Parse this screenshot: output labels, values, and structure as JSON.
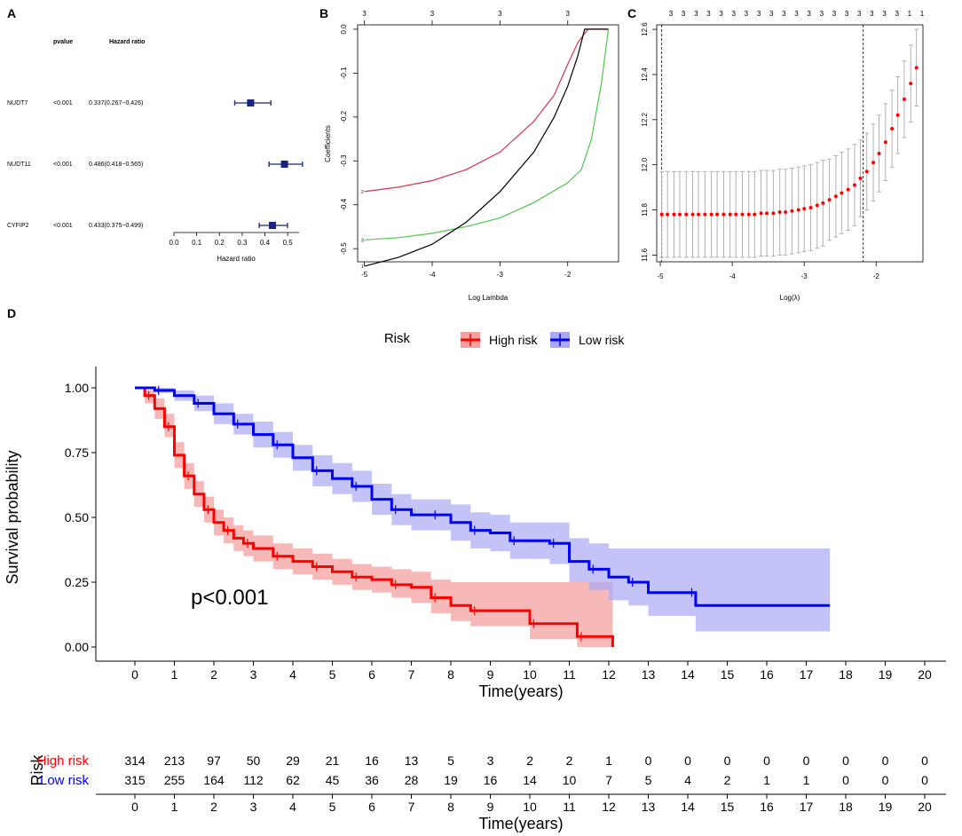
{
  "panel_labels": {
    "a": "A",
    "b": "B",
    "c": "C",
    "d": "D"
  },
  "colors": {
    "high": "#ff0000",
    "low": "#0000ff",
    "high_band": "#f4a0a0",
    "low_band": "#a9a9f5",
    "forest": "#1a237e",
    "red_line": "#d6334b",
    "green_line": "#4cc84c",
    "black_line": "#000000"
  },
  "chart_data": [
    {
      "panel": "A",
      "type": "forest",
      "col_headers": {
        "pvalue": "pvalue",
        "hr": "Hazard ratio"
      },
      "rows": [
        {
          "gene": "NUDT7",
          "pvalue": "<0.001",
          "hr_text": "0.337(0.267−0.426)",
          "hr": 0.337,
          "lo": 0.267,
          "hi": 0.426
        },
        {
          "gene": "NUDT11",
          "pvalue": "<0.001",
          "hr_text": "0.486(0.418−0.565)",
          "hr": 0.486,
          "lo": 0.418,
          "hi": 0.565
        },
        {
          "gene": "CYFIP2",
          "pvalue": "<0.001",
          "hr_text": "0.433(0.375−0.499)",
          "hr": 0.433,
          "lo": 0.375,
          "hi": 0.499
        }
      ],
      "xticks": [
        "0.0",
        "0.1",
        "0.2",
        "0.3",
        "0.4",
        "0.5"
      ],
      "xlim": [
        0,
        0.55
      ],
      "xlabel": "Hazard ratio"
    },
    {
      "panel": "B",
      "type": "line",
      "title": "",
      "xlabel": "Log Lambda",
      "ylabel": "Coefficients",
      "xlim": [
        -5.1,
        -1.25
      ],
      "ylim": [
        -0.53,
        0.01
      ],
      "xticks": [
        "-5",
        "-4",
        "-3",
        "-2"
      ],
      "yticks": [
        "0.0",
        "-0.1",
        "-0.2",
        "-0.3",
        "-0.4",
        "-0.5"
      ],
      "top_ticks": [
        "3",
        "3",
        "3",
        "3"
      ],
      "top_tick_x": [
        -5,
        -4,
        -3,
        -2
      ],
      "series": [
        {
          "name": "2",
          "color": "#d6334b",
          "points": [
            [
              -5,
              -0.37
            ],
            [
              -4.5,
              -0.36
            ],
            [
              -4,
              -0.345
            ],
            [
              -3.5,
              -0.32
            ],
            [
              -3,
              -0.28
            ],
            [
              -2.5,
              -0.21
            ],
            [
              -2.2,
              -0.15
            ],
            [
              -2,
              -0.08
            ],
            [
              -1.85,
              -0.03
            ],
            [
              -1.7,
              0
            ],
            [
              -1.4,
              0
            ]
          ]
        },
        {
          "name": "3",
          "color": "#4cc84c",
          "points": [
            [
              -5,
              -0.48
            ],
            [
              -4.5,
              -0.475
            ],
            [
              -4,
              -0.465
            ],
            [
              -3.5,
              -0.45
            ],
            [
              -3,
              -0.43
            ],
            [
              -2.5,
              -0.395
            ],
            [
              -2,
              -0.35
            ],
            [
              -1.8,
              -0.32
            ],
            [
              -1.65,
              -0.25
            ],
            [
              -1.5,
              -0.12
            ],
            [
              -1.4,
              0
            ]
          ]
        },
        {
          "name": "1",
          "color": "#000000",
          "points": [
            [
              -5,
              -0.54
            ],
            [
              -4.5,
              -0.52
            ],
            [
              -4,
              -0.49
            ],
            [
              -3.5,
              -0.44
            ],
            [
              -3,
              -0.37
            ],
            [
              -2.5,
              -0.28
            ],
            [
              -2.2,
              -0.2
            ],
            [
              -2,
              -0.13
            ],
            [
              -1.85,
              -0.06
            ],
            [
              -1.75,
              0
            ],
            [
              -1.4,
              0
            ]
          ]
        }
      ]
    },
    {
      "panel": "C",
      "type": "scatter",
      "xlabel": "Log(λ)",
      "ylabel": "",
      "xlim": [
        -5.05,
        -1.35
      ],
      "ylim": [
        11.57,
        12.62
      ],
      "xticks": [
        "-5",
        "-4",
        "-3",
        "-2"
      ],
      "yticks": [
        "11.6",
        "11.8",
        "12.0",
        "12.2",
        "12.4",
        "12.6"
      ],
      "top_ticks": [
        "3",
        "3",
        "3",
        "3",
        "3",
        "3",
        "3",
        "3",
        "3",
        "3",
        "3",
        "3",
        "3",
        "3",
        "3",
        "3",
        "3",
        "3",
        "3",
        "1",
        "1"
      ],
      "vlines": [
        -4.98,
        -2.18
      ],
      "log_lambda": [
        -4.98,
        -4.9,
        -4.81,
        -4.73,
        -4.64,
        -4.55,
        -4.47,
        -4.38,
        -4.29,
        -4.21,
        -4.12,
        -4.03,
        -3.95,
        -3.86,
        -3.77,
        -3.69,
        -3.6,
        -3.52,
        -3.43,
        -3.34,
        -3.26,
        -3.17,
        -3.08,
        -3.0,
        -2.91,
        -2.82,
        -2.74,
        -2.65,
        -2.56,
        -2.48,
        -2.39,
        -2.3,
        -2.22,
        -2.13,
        -2.04,
        -1.96,
        -1.87,
        -1.78,
        -1.7,
        -1.61,
        -1.52,
        -1.44
      ],
      "cvm": [
        11.78,
        11.78,
        11.78,
        11.78,
        11.78,
        11.78,
        11.78,
        11.78,
        11.78,
        11.78,
        11.78,
        11.78,
        11.78,
        11.78,
        11.78,
        11.78,
        11.785,
        11.785,
        11.785,
        11.79,
        11.79,
        11.795,
        11.8,
        11.805,
        11.81,
        11.82,
        11.83,
        11.845,
        11.86,
        11.875,
        11.89,
        11.91,
        11.94,
        11.97,
        12.01,
        12.05,
        12.1,
        12.16,
        12.22,
        12.29,
        12.36,
        12.43
      ],
      "cvsd": [
        0.19,
        0.19,
        0.19,
        0.19,
        0.19,
        0.19,
        0.19,
        0.19,
        0.19,
        0.19,
        0.19,
        0.19,
        0.19,
        0.19,
        0.19,
        0.19,
        0.19,
        0.19,
        0.19,
        0.19,
        0.19,
        0.19,
        0.19,
        0.19,
        0.19,
        0.19,
        0.19,
        0.18,
        0.18,
        0.18,
        0.18,
        0.18,
        0.17,
        0.17,
        0.17,
        0.17,
        0.17,
        0.17,
        0.17,
        0.17,
        0.17,
        0.17
      ]
    },
    {
      "panel": "D",
      "type": "line",
      "subtype": "kaplan-meier",
      "legend_title": "Risk",
      "legend": [
        "High risk",
        "Low risk"
      ],
      "xlabel": "Time(years)",
      "ylabel": "Survival probability",
      "xlim": [
        -0.6,
        20.6
      ],
      "ylim": [
        -0.03,
        1.03
      ],
      "xticks": [
        "0",
        "1",
        "2",
        "3",
        "4",
        "5",
        "6",
        "7",
        "8",
        "9",
        "10",
        "11",
        "12",
        "13",
        "14",
        "15",
        "16",
        "17",
        "18",
        "19",
        "20"
      ],
      "yticks": [
        "0.00",
        "0.25",
        "0.50",
        "0.75",
        "1.00"
      ],
      "annotation": "p<0.001",
      "series": [
        {
          "name": "High risk",
          "color": "#ff0000",
          "points": [
            [
              0,
              1.0
            ],
            [
              0.25,
              0.97
            ],
            [
              0.5,
              0.92
            ],
            [
              0.75,
              0.85
            ],
            [
              1.0,
              0.74
            ],
            [
              1.25,
              0.66
            ],
            [
              1.5,
              0.59
            ],
            [
              1.75,
              0.53
            ],
            [
              2.0,
              0.48
            ],
            [
              2.25,
              0.45
            ],
            [
              2.5,
              0.42
            ],
            [
              2.75,
              0.4
            ],
            [
              3.0,
              0.38
            ],
            [
              3.5,
              0.35
            ],
            [
              4.0,
              0.33
            ],
            [
              4.5,
              0.31
            ],
            [
              5.0,
              0.29
            ],
            [
              5.5,
              0.27
            ],
            [
              6.0,
              0.26
            ],
            [
              6.5,
              0.24
            ],
            [
              7.0,
              0.23
            ],
            [
              7.5,
              0.19
            ],
            [
              8.0,
              0.16
            ],
            [
              8.5,
              0.14
            ],
            [
              9.0,
              0.14
            ],
            [
              10.0,
              0.09
            ],
            [
              11.0,
              0.09
            ],
            [
              11.2,
              0.04
            ],
            [
              12.1,
              0.04
            ],
            [
              12.1,
              0.0
            ]
          ],
          "lower": [
            1.0,
            0.94,
            0.88,
            0.81,
            0.69,
            0.61,
            0.54,
            0.48,
            0.43,
            0.4,
            0.37,
            0.35,
            0.33,
            0.3,
            0.28,
            0.26,
            0.24,
            0.22,
            0.21,
            0.19,
            0.17,
            0.13,
            0.1,
            0.08,
            0.08,
            0.03,
            0.03,
            0.0,
            0.0,
            0.0
          ],
          "upper": [
            1.0,
            0.99,
            0.96,
            0.9,
            0.79,
            0.71,
            0.64,
            0.58,
            0.53,
            0.5,
            0.47,
            0.45,
            0.43,
            0.4,
            0.38,
            0.36,
            0.34,
            0.32,
            0.31,
            0.3,
            0.29,
            0.26,
            0.25,
            0.25,
            0.25,
            0.25,
            0.25,
            0.25,
            0.25,
            0.25
          ]
        },
        {
          "name": "Low risk",
          "color": "#0000ff",
          "points": [
            [
              0,
              1.0
            ],
            [
              0.5,
              0.99
            ],
            [
              1.0,
              0.97
            ],
            [
              1.5,
              0.94
            ],
            [
              2.0,
              0.9
            ],
            [
              2.5,
              0.86
            ],
            [
              3.0,
              0.82
            ],
            [
              3.5,
              0.78
            ],
            [
              4.0,
              0.73
            ],
            [
              4.5,
              0.68
            ],
            [
              5.0,
              0.65
            ],
            [
              5.5,
              0.62
            ],
            [
              6.0,
              0.57
            ],
            [
              6.5,
              0.53
            ],
            [
              7.0,
              0.51
            ],
            [
              7.5,
              0.51
            ],
            [
              8.0,
              0.48
            ],
            [
              8.5,
              0.45
            ],
            [
              9.0,
              0.44
            ],
            [
              9.5,
              0.41
            ],
            [
              10.0,
              0.41
            ],
            [
              10.5,
              0.4
            ],
            [
              11.0,
              0.33
            ],
            [
              11.5,
              0.3
            ],
            [
              12.0,
              0.27
            ],
            [
              12.5,
              0.25
            ],
            [
              13.0,
              0.21
            ],
            [
              14.0,
              0.21
            ],
            [
              14.2,
              0.16
            ],
            [
              17.6,
              0.16
            ]
          ],
          "lower": [
            1.0,
            0.98,
            0.95,
            0.91,
            0.86,
            0.82,
            0.77,
            0.73,
            0.68,
            0.62,
            0.59,
            0.56,
            0.51,
            0.47,
            0.45,
            0.45,
            0.41,
            0.38,
            0.37,
            0.34,
            0.34,
            0.32,
            0.25,
            0.22,
            0.18,
            0.16,
            0.12,
            0.12,
            0.06,
            0.06
          ],
          "upper": [
            1.0,
            1.0,
            0.99,
            0.97,
            0.94,
            0.9,
            0.87,
            0.83,
            0.78,
            0.74,
            0.71,
            0.68,
            0.63,
            0.59,
            0.57,
            0.57,
            0.55,
            0.52,
            0.51,
            0.48,
            0.48,
            0.48,
            0.42,
            0.4,
            0.38,
            0.38,
            0.38,
            0.38,
            0.38,
            0.38
          ]
        }
      ]
    }
  ],
  "risk_table": {
    "title": "Risk",
    "xlabel": "Time(years)",
    "xticks": [
      "0",
      "1",
      "2",
      "3",
      "4",
      "5",
      "6",
      "7",
      "8",
      "9",
      "10",
      "11",
      "12",
      "13",
      "14",
      "15",
      "16",
      "17",
      "18",
      "19",
      "20"
    ],
    "rows": [
      {
        "label": "High risk",
        "color": "#ff0000",
        "counts": [
          "314",
          "213",
          "97",
          "50",
          "29",
          "21",
          "16",
          "13",
          "5",
          "3",
          "2",
          "2",
          "1",
          "0",
          "0",
          "0",
          "0",
          "0",
          "0",
          "0",
          "0"
        ]
      },
      {
        "label": "Low risk",
        "color": "#0000ff",
        "counts": [
          "315",
          "255",
          "164",
          "112",
          "62",
          "45",
          "36",
          "28",
          "19",
          "16",
          "14",
          "10",
          "7",
          "5",
          "4",
          "2",
          "1",
          "1",
          "0",
          "0",
          "0"
        ]
      }
    ]
  }
}
